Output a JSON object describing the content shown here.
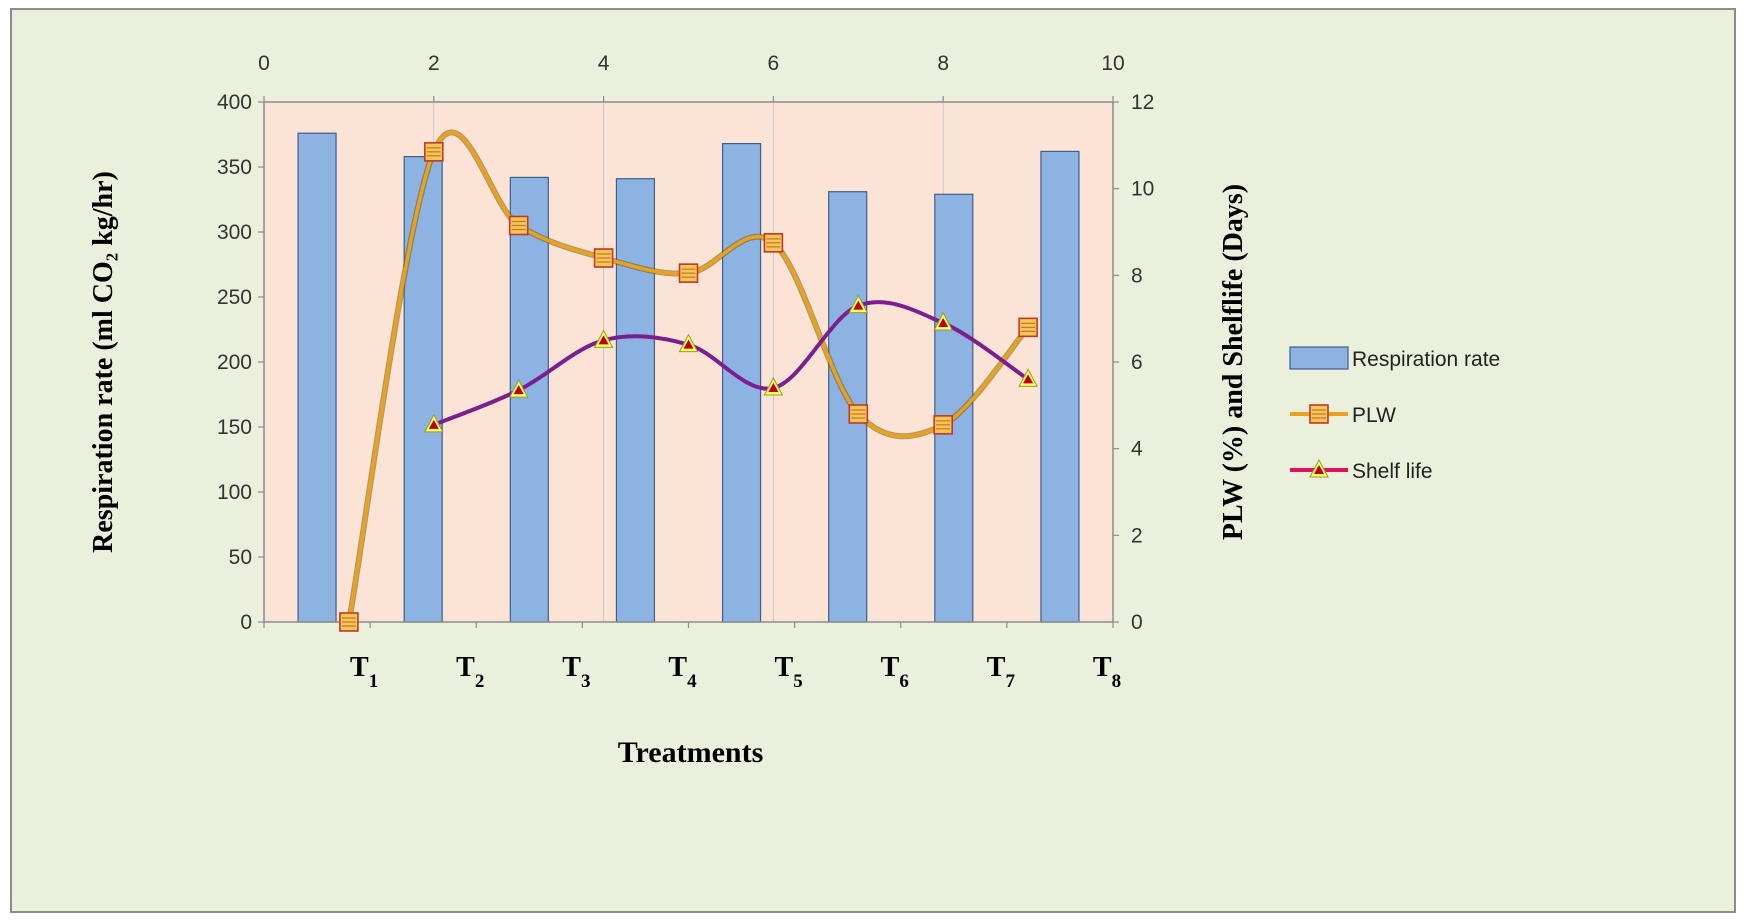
{
  "chart_data": {
    "type": "bar",
    "xlabel": "Treatments",
    "ylabel_left": "Respiration rate (ml CO₂ kg/hr)",
    "ylabel_right": "PLW (%) and Shelflife (Days)",
    "categories": [
      "T1",
      "T2",
      "T3",
      "T4",
      "T5",
      "T6",
      "T7",
      "T8"
    ],
    "category_labels": [
      {
        "main": "T",
        "sub": "1"
      },
      {
        "main": "T",
        "sub": "2"
      },
      {
        "main": "T",
        "sub": "3"
      },
      {
        "main": "T",
        "sub": "4"
      },
      {
        "main": "T",
        "sub": "5"
      },
      {
        "main": "T",
        "sub": "6"
      },
      {
        "main": "T",
        "sub": "7"
      },
      {
        "main": "T",
        "sub": "8"
      }
    ],
    "left_axis": {
      "min": 0,
      "max": 400,
      "ticks": [
        0,
        50,
        100,
        150,
        200,
        250,
        300,
        350,
        400
      ]
    },
    "right_axis": {
      "min": 0,
      "max": 12,
      "ticks": [
        0,
        2,
        4,
        6,
        8,
        10,
        12
      ]
    },
    "top_axis": {
      "min": 0,
      "max": 10,
      "ticks": [
        0,
        2,
        4,
        6,
        8,
        10
      ]
    },
    "series": [
      {
        "name": "Respiration rate",
        "kind": "bar",
        "axis": "left",
        "values": [
          376,
          358,
          342,
          341,
          368,
          331,
          329,
          362
        ]
      },
      {
        "name": "PLW",
        "kind": "line",
        "axis": "right",
        "x": [
          1,
          2,
          3,
          4,
          5,
          6,
          7,
          8,
          9
        ],
        "values": [
          0,
          10.85,
          9.15,
          8.4,
          8.05,
          8.75,
          4.8,
          4.55,
          6.8
        ]
      },
      {
        "name": "Shelf life",
        "kind": "line",
        "axis": "right",
        "x": [
          2,
          3,
          4,
          5,
          6,
          7,
          8,
          9
        ],
        "values": [
          4.55,
          5.35,
          6.5,
          6.4,
          5.4,
          7.3,
          6.9,
          5.6
        ]
      }
    ],
    "legend_position": "right",
    "colors": {
      "frame_bg": "#eaf0dc",
      "plot_bg": "#fbe4d5",
      "bar_fill": "#8db3e2",
      "bar_stroke": "#3d5f8c",
      "plw_line": "#e9a21d",
      "plw_line_shadow": "#7a5a14",
      "plw_marker_fill": "#f8c455",
      "plw_marker_stroke": "#c0392b",
      "shelf_line": "#7b1f8f",
      "shelf_marker_fill": "#ffff66",
      "shelf_marker_inner": "#c00000",
      "shelf_legend_line": "#e0115f"
    }
  }
}
